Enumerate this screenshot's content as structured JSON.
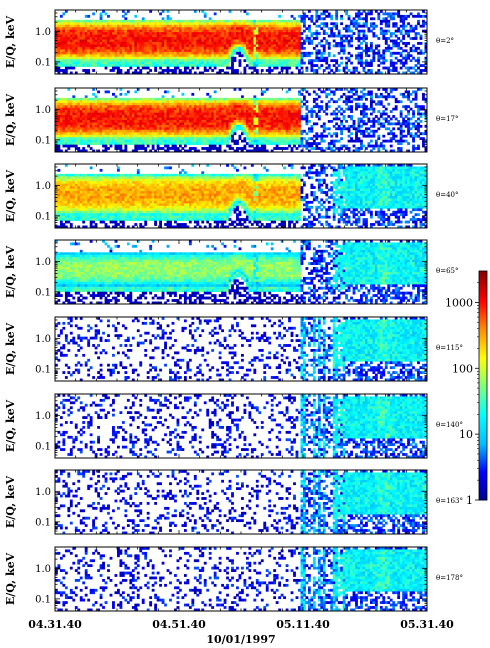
{
  "chart_data": {
    "type": "heatmap",
    "xlabel": "10/01/1997",
    "x_ticks": [
      "04.31.40",
      "04.51.40",
      "05.11.40",
      "05.31.40"
    ],
    "ylabel": "E/Q, keV",
    "y_scale": "log",
    "y_ticks": [
      "1.0",
      "0.1"
    ],
    "y_range_keV": [
      0.04,
      5
    ],
    "colorbar": {
      "scale": "log",
      "range": [
        1,
        3000
      ],
      "ticks": [
        "1000",
        "100",
        "10",
        "1"
      ],
      "colormap": [
        "#00008b",
        "#0000ff",
        "#00bfff",
        "#00ffff",
        "#7fff7f",
        "#ffff00",
        "#ff8c00",
        "#ff0000",
        "#8b0000"
      ]
    },
    "panels": [
      {
        "angle": "θ=2°",
        "regime1": "red",
        "band": [
          0.1,
          2.5
        ],
        "regime2": "sparse",
        "regime3": "sparse"
      },
      {
        "angle": "θ=17°",
        "regime1": "red",
        "band": [
          0.1,
          2.5
        ],
        "regime2": "sparse",
        "regime3": "sparse"
      },
      {
        "angle": "θ=40°",
        "regime1": "orange",
        "band": [
          0.1,
          2.5
        ],
        "regime2": "patchy",
        "regime3": "cyan"
      },
      {
        "angle": "θ=65°",
        "regime1": "green",
        "band": [
          0.15,
          2.0
        ],
        "regime2": "patchy",
        "regime3": "cyan"
      },
      {
        "angle": "θ=115°",
        "regime1": "sparse",
        "band": null,
        "regime2": "streaks",
        "regime3": "cyan"
      },
      {
        "angle": "θ=140°",
        "regime1": "sparse",
        "band": null,
        "regime2": "streaks",
        "regime3": "cyan"
      },
      {
        "angle": "θ=163°",
        "regime1": "sparse",
        "band": null,
        "regime2": "streaks",
        "regime3": "cyan"
      },
      {
        "angle": "θ=178°",
        "regime1": "sparse",
        "band": null,
        "regime2": "streaks",
        "regime3": "cyan"
      }
    ]
  }
}
